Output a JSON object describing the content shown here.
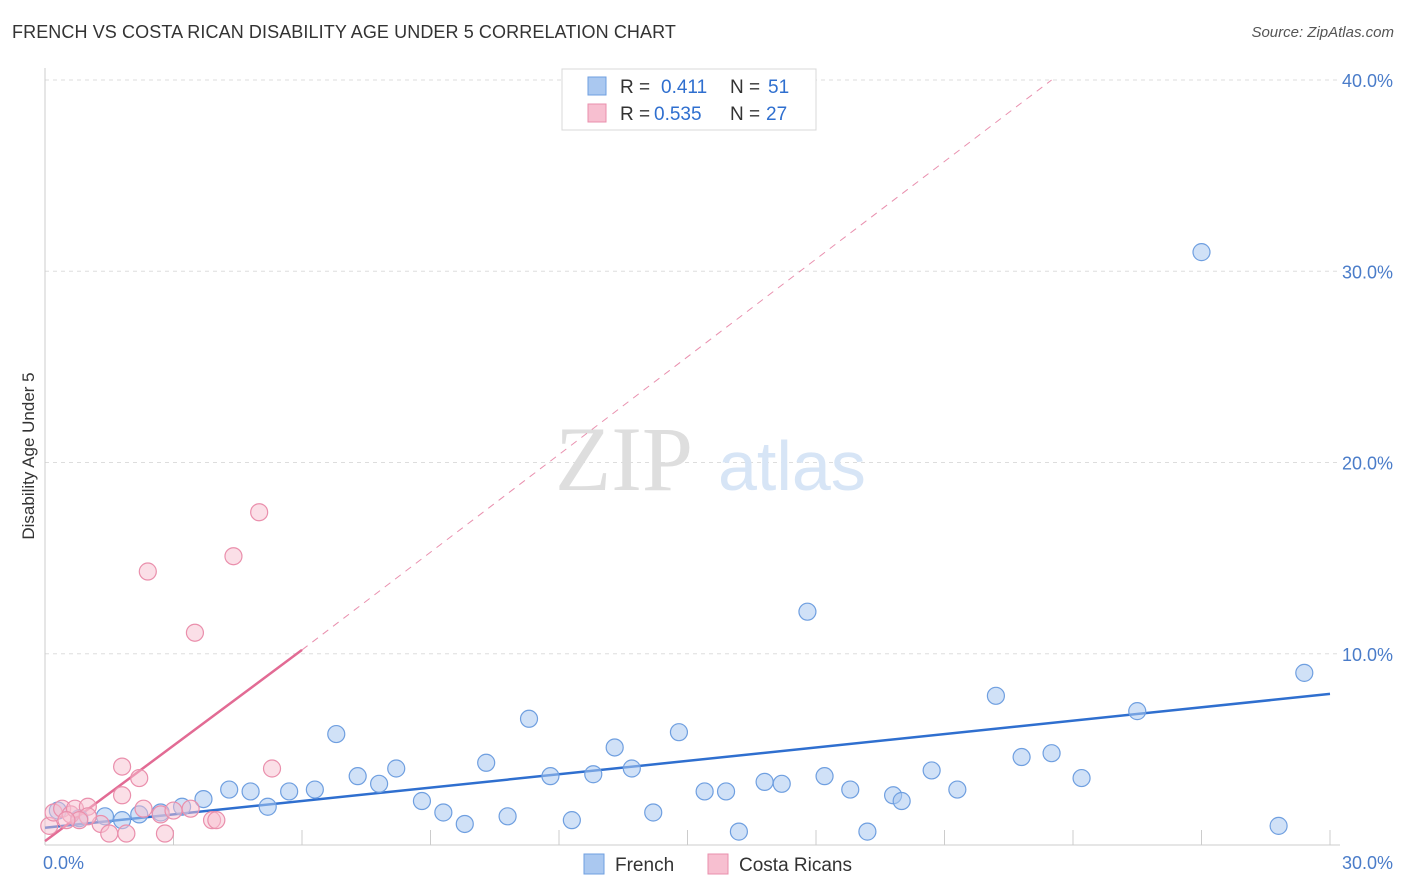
{
  "title": "FRENCH VS COSTA RICAN DISABILITY AGE UNDER 5 CORRELATION CHART",
  "source": "Source: ZipAtlas.com",
  "watermark": {
    "zip": "ZIP",
    "atlas": "atlas"
  },
  "colors": {
    "french": "#aac8f0",
    "french_stroke": "#6f9fe0",
    "french_line": "#2f6fcf",
    "costa": "#f7bfd0",
    "costa_stroke": "#ea8fac",
    "costa_line": "#e26b94",
    "tick": "#4a7cc9",
    "grid": "#dddddd"
  },
  "chart_data": {
    "type": "scatter",
    "title": "FRENCH VS COSTA RICAN DISABILITY AGE UNDER 5 CORRELATION CHART",
    "xlabel": "",
    "ylabel": "Disability Age Under 5",
    "xlim": [
      0,
      30
    ],
    "ylim": [
      0,
      40
    ],
    "x_tick_labels": [
      "0.0%",
      "30.0%"
    ],
    "y_ticks": [
      10,
      20,
      30,
      40
    ],
    "y_tick_labels": [
      "10.0%",
      "20.0%",
      "30.0%",
      "40.0%"
    ],
    "grid": true,
    "legend": {
      "position": "top-center",
      "entries": [
        {
          "series": "French",
          "r_label": "R =",
          "r_value": "0.411",
          "n_label": "N =",
          "n_value": "51"
        },
        {
          "series": "Costa Ricans",
          "r_label": "R =",
          "r_value": "0.535",
          "n_label": "N =",
          "n_value": "27"
        }
      ]
    },
    "bottom_legend": [
      "French",
      "Costa Ricans"
    ],
    "series": [
      {
        "name": "French",
        "points": [
          [
            0.3,
            1.8
          ],
          [
            0.8,
            1.4
          ],
          [
            1.4,
            1.5
          ],
          [
            1.8,
            1.3
          ],
          [
            2.2,
            1.6
          ],
          [
            2.7,
            1.7
          ],
          [
            3.2,
            2.0
          ],
          [
            3.7,
            2.4
          ],
          [
            4.3,
            2.9
          ],
          [
            4.8,
            2.8
          ],
          [
            5.2,
            2.0
          ],
          [
            5.7,
            2.8
          ],
          [
            6.3,
            2.9
          ],
          [
            6.8,
            5.8
          ],
          [
            7.3,
            3.6
          ],
          [
            7.8,
            3.2
          ],
          [
            8.2,
            4.0
          ],
          [
            8.8,
            2.3
          ],
          [
            9.3,
            1.7
          ],
          [
            9.8,
            1.1
          ],
          [
            10.3,
            4.3
          ],
          [
            10.8,
            1.5
          ],
          [
            11.3,
            6.6
          ],
          [
            11.8,
            3.6
          ],
          [
            12.3,
            1.3
          ],
          [
            12.8,
            3.7
          ],
          [
            13.3,
            5.1
          ],
          [
            13.7,
            4.0
          ],
          [
            14.2,
            1.7
          ],
          [
            14.8,
            5.9
          ],
          [
            15.4,
            2.8
          ],
          [
            15.9,
            2.8
          ],
          [
            16.2,
            0.7
          ],
          [
            16.8,
            3.3
          ],
          [
            17.2,
            3.2
          ],
          [
            17.8,
            12.2
          ],
          [
            18.2,
            3.6
          ],
          [
            18.8,
            2.9
          ],
          [
            19.2,
            0.7
          ],
          [
            19.8,
            2.6
          ],
          [
            20.0,
            2.3
          ],
          [
            20.7,
            3.9
          ],
          [
            21.3,
            2.9
          ],
          [
            22.2,
            7.8
          ],
          [
            22.8,
            4.6
          ],
          [
            23.5,
            4.8
          ],
          [
            24.2,
            3.5
          ],
          [
            25.5,
            7.0
          ],
          [
            27.0,
            31.0
          ],
          [
            28.8,
            1.0
          ],
          [
            29.4,
            9.0
          ]
        ]
      },
      {
        "name": "Costa Ricans",
        "points": [
          [
            0.1,
            1.0
          ],
          [
            0.2,
            1.7
          ],
          [
            0.4,
            1.9
          ],
          [
            0.6,
            1.6
          ],
          [
            0.7,
            1.9
          ],
          [
            1.0,
            2.0
          ],
          [
            1.3,
            1.1
          ],
          [
            1.5,
            0.6
          ],
          [
            1.8,
            2.6
          ],
          [
            1.8,
            4.1
          ],
          [
            1.9,
            0.6
          ],
          [
            2.2,
            3.5
          ],
          [
            2.3,
            1.9
          ],
          [
            2.4,
            14.3
          ],
          [
            2.7,
            1.6
          ],
          [
            2.8,
            0.6
          ],
          [
            3.0,
            1.8
          ],
          [
            3.4,
            1.9
          ],
          [
            3.5,
            11.1
          ],
          [
            3.9,
            1.3
          ],
          [
            4.0,
            1.3
          ],
          [
            4.4,
            15.1
          ],
          [
            5.0,
            17.4
          ],
          [
            5.3,
            4.0
          ],
          [
            1.0,
            1.5
          ],
          [
            0.8,
            1.3
          ],
          [
            0.5,
            1.3
          ]
        ]
      }
    ],
    "trend_lines": [
      {
        "series": "French",
        "x": [
          0,
          30
        ],
        "y": [
          0.9,
          7.9
        ]
      },
      {
        "series": "Costa Ricans",
        "x": [
          0,
          6
        ],
        "y": [
          0.2,
          10.2
        ],
        "dashed_extension_to": [
          23.5,
          40.0
        ]
      }
    ]
  }
}
